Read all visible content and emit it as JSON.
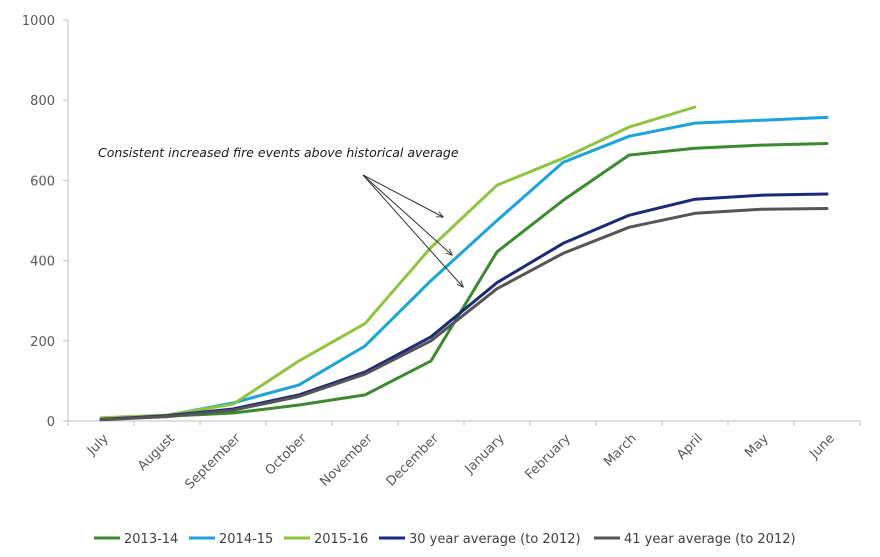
{
  "chart_data": {
    "type": "line",
    "title": "",
    "xlabel": "",
    "ylabel": "",
    "categories": [
      "July",
      "August",
      "September",
      "October",
      "November",
      "December",
      "January",
      "February",
      "March",
      "April",
      "May",
      "June"
    ],
    "ylim": [
      0,
      1000
    ],
    "yticks": [
      0,
      200,
      400,
      600,
      800,
      1000
    ],
    "grid": false,
    "legend_position": "bottom",
    "series": [
      {
        "name": "2013-14",
        "color": "#3a8a2e",
        "values": [
          5,
          12,
          20,
          40,
          65,
          150,
          422,
          550,
          663,
          680,
          688,
          692
        ]
      },
      {
        "name": "2014-15",
        "color": "#1aa3dd",
        "values": [
          6,
          14,
          45,
          90,
          187,
          350,
          500,
          645,
          710,
          743,
          750,
          757
        ]
      },
      {
        "name": "2015-16",
        "color": "#8cc63e",
        "values": [
          8,
          15,
          42,
          150,
          243,
          433,
          588,
          655,
          733,
          783,
          null,
          null
        ]
      },
      {
        "name": "30 year average (to 2012)",
        "color": "#1b2a7a",
        "values": [
          4,
          13,
          30,
          65,
          122,
          210,
          345,
          443,
          513,
          553,
          563,
          566
        ]
      },
      {
        "name": "41 year average (to 2012)",
        "color": "#555555",
        "values": [
          3,
          11,
          27,
          61,
          117,
          200,
          330,
          418,
          483,
          518,
          528,
          530
        ]
      }
    ],
    "annotations": [
      {
        "text": "Consistent increased fire events above historical average"
      }
    ]
  }
}
